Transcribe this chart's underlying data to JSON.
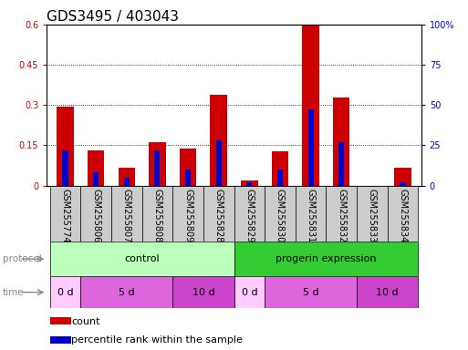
{
  "title": "GDS3495 / 403043",
  "samples": [
    "GSM255774",
    "GSM255806",
    "GSM255807",
    "GSM255808",
    "GSM255809",
    "GSM255828",
    "GSM255829",
    "GSM255830",
    "GSM255831",
    "GSM255832",
    "GSM255833",
    "GSM255834"
  ],
  "count_values": [
    0.293,
    0.13,
    0.065,
    0.163,
    0.137,
    0.337,
    0.018,
    0.127,
    0.595,
    0.327,
    0.0,
    0.065
  ],
  "percentile_values": [
    22,
    8,
    5,
    22,
    10,
    28,
    2,
    10,
    47,
    27,
    0,
    2
  ],
  "ylim_left": [
    0,
    0.6
  ],
  "ylim_right": [
    0,
    100
  ],
  "yticks_left": [
    0,
    0.15,
    0.3,
    0.45,
    0.6
  ],
  "yticks_right": [
    0,
    25,
    50,
    75,
    100
  ],
  "ytick_labels_left": [
    "0",
    "0.15",
    "0.3",
    "0.45",
    "0.6"
  ],
  "ytick_labels_right": [
    "0",
    "25",
    "50",
    "75",
    "100%"
  ],
  "bar_color_red": "#cc0000",
  "bar_color_blue": "#0000cc",
  "background_color": "#ffffff",
  "tick_label_color_left": "#cc0000",
  "tick_label_color_right": "#0000cc",
  "title_fontsize": 11,
  "legend_fontsize": 8,
  "tick_label_fontsize": 7,
  "sample_label_fontsize": 7,
  "control_color_light": "#bbffbb",
  "control_color_dark": "#33cc33",
  "progerin_color_light": "#bbffbb",
  "progerin_color_dark": "#33cc33",
  "time_color_0d": "#ffccff",
  "time_color_5d": "#dd66dd",
  "time_color_10d": "#cc44cc",
  "sample_bg_color": "#cccccc",
  "time_spans_control": [
    {
      "label": "0 d",
      "si": 0,
      "ei": 0,
      "color": "#ffccff"
    },
    {
      "label": "5 d",
      "si": 1,
      "ei": 3,
      "color": "#dd66dd"
    },
    {
      "label": "10 d",
      "si": 4,
      "ei": 5,
      "color": "#cc44cc"
    }
  ],
  "time_spans_progerin": [
    {
      "label": "0 d",
      "si": 6,
      "ei": 6,
      "color": "#ffccff"
    },
    {
      "label": "5 d",
      "si": 7,
      "ei": 9,
      "color": "#dd66dd"
    },
    {
      "label": "10 d",
      "si": 10,
      "ei": 11,
      "color": "#cc44cc"
    }
  ]
}
